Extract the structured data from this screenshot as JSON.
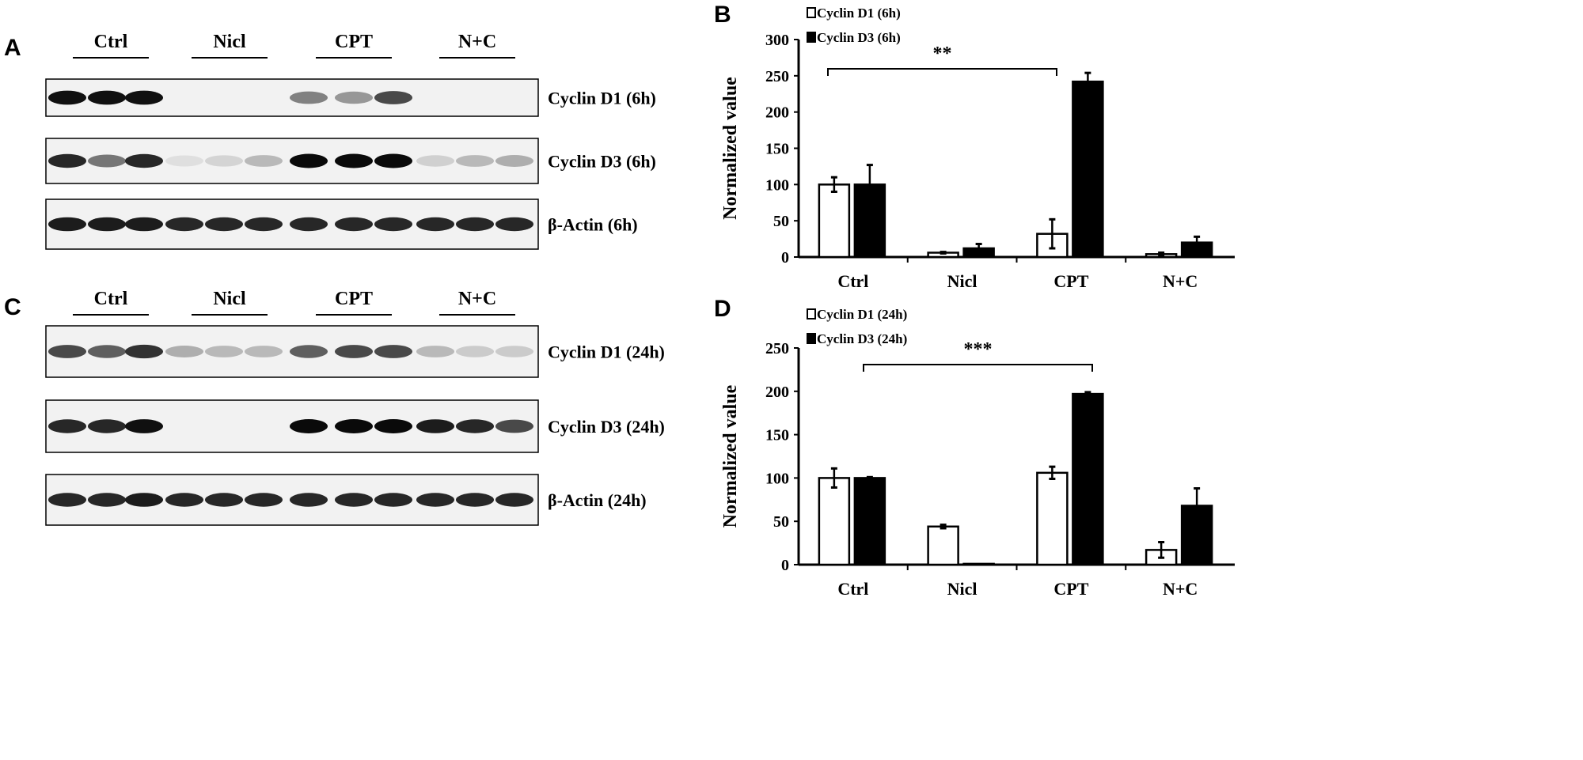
{
  "panels": {
    "A": {
      "letter": "A",
      "groups": [
        "Ctrl",
        "Nicl",
        "CPT",
        "N+C"
      ],
      "blots": [
        {
          "label": "Cyclin D1 (6h)",
          "band_intensity": [
            0.95,
            0.95,
            0.95,
            0,
            0,
            0,
            0.45,
            0.35,
            0.7,
            0,
            0,
            0
          ]
        },
        {
          "label": "Cyclin D3 (6h)",
          "band_intensity": [
            0.85,
            0.5,
            0.85,
            0.03,
            0.08,
            0.2,
            0.98,
            0.98,
            0.98,
            0.1,
            0.2,
            0.25
          ]
        },
        {
          "label": "β-Actin  (6h)",
          "band_intensity": [
            0.9,
            0.9,
            0.9,
            0.85,
            0.85,
            0.85,
            0.85,
            0.85,
            0.85,
            0.85,
            0.85,
            0.85
          ]
        }
      ]
    },
    "C": {
      "letter": "C",
      "groups": [
        "Ctrl",
        "Nicl",
        "CPT",
        "N+C"
      ],
      "blots": [
        {
          "label": "Cyclin D1 (24h)",
          "band_intensity": [
            0.7,
            0.6,
            0.8,
            0.25,
            0.2,
            0.2,
            0.6,
            0.7,
            0.7,
            0.2,
            0.12,
            0.12
          ]
        },
        {
          "label": "Cyclin D3 (24h)",
          "band_intensity": [
            0.85,
            0.85,
            0.95,
            0,
            0,
            0,
            0.98,
            0.98,
            0.98,
            0.9,
            0.85,
            0.7
          ]
        },
        {
          "label": "β-Actin (24h)",
          "band_intensity": [
            0.85,
            0.85,
            0.9,
            0.85,
            0.85,
            0.85,
            0.85,
            0.85,
            0.85,
            0.85,
            0.85,
            0.85
          ]
        }
      ]
    }
  },
  "chart_data": [
    {
      "panel": "B",
      "type": "bar",
      "categories": [
        "Ctrl",
        "Nicl",
        "CPT",
        "N+C"
      ],
      "ylabel": "Normalized value",
      "ylim": [
        0,
        300
      ],
      "yticks": [
        0,
        50,
        100,
        150,
        200,
        250,
        300
      ],
      "legend_position": "top-left",
      "series": [
        {
          "name": "Cyclin D1 (6h)",
          "color": "#ffffff",
          "values": [
            100,
            6,
            32,
            4
          ],
          "errors": [
            10,
            1,
            20,
            2
          ]
        },
        {
          "name": "Cyclin D3 (6h)",
          "color": "#000000",
          "values": [
            100,
            12,
            242,
            20
          ],
          "errors": [
            27,
            6,
            12,
            8
          ]
        }
      ],
      "significance": {
        "label": "**",
        "from": "Ctrl",
        "to": "CPT"
      }
    },
    {
      "panel": "D",
      "type": "bar",
      "categories": [
        "Ctrl",
        "Nicl",
        "CPT",
        "N+C"
      ],
      "ylabel": "Normalized value",
      "ylim": [
        0,
        250
      ],
      "yticks": [
        0,
        50,
        100,
        150,
        200,
        250
      ],
      "legend_position": "top-left",
      "series": [
        {
          "name": "Cyclin D1 (24h)",
          "color": "#ffffff",
          "values": [
            100,
            44,
            106,
            17
          ],
          "errors": [
            11,
            2,
            7,
            9
          ]
        },
        {
          "name": "Cyclin D3 (24h)",
          "color": "#000000",
          "values": [
            100,
            1,
            197,
            68
          ],
          "errors": [
            1,
            0,
            2,
            20
          ]
        }
      ],
      "significance": {
        "label": "***",
        "from": "Ctrl",
        "to": "CPT"
      }
    }
  ]
}
